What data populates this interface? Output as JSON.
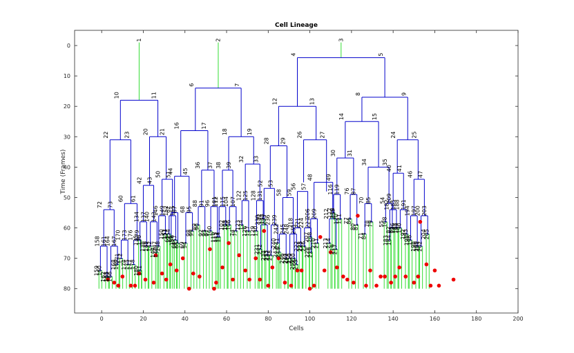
{
  "chart_data": {
    "type": "dendrogram",
    "title": "Cell Lineage",
    "xlabel": "Cells",
    "ylabel": "Time (Frames)",
    "xlim": [
      -13,
      200
    ],
    "ylim": [
      -5,
      88
    ],
    "y_reversed": true,
    "x_ticks": [
      0,
      20,
      40,
      60,
      80,
      100,
      120,
      140,
      160,
      180,
      200
    ],
    "y_ticks": [
      0,
      10,
      20,
      30,
      40,
      50,
      60,
      70,
      80
    ],
    "grid": false,
    "colors": {
      "lineage_branch": "#0000cc",
      "terminal_branch": "#33dd33",
      "root_stem": "#33dd33",
      "event_marker": "#ee0000",
      "axes": "#262626"
    },
    "roots": [
      {
        "label": "1",
        "x": 18,
        "y0": -1,
        "y1": 18
      },
      {
        "label": "2",
        "x": 56,
        "y0": -1,
        "y1": 14
      },
      {
        "label": "3",
        "x": 115,
        "y0": -1,
        "y1": 4
      }
    ],
    "divisions": [
      {
        "parent": "1",
        "y": 18,
        "children": [
          {
            "label": "10",
            "x": 9
          },
          {
            "label": "11",
            "x": 27
          }
        ]
      },
      {
        "parent": "2",
        "y": 14,
        "children": [
          {
            "label": "6",
            "x": 45
          },
          {
            "label": "7",
            "x": 67
          }
        ]
      },
      {
        "parent": "3",
        "y": 4,
        "children": [
          {
            "label": "4",
            "x": 94
          },
          {
            "label": "5",
            "x": 136
          }
        ]
      },
      {
        "parent": "10",
        "y": 31,
        "children": [
          {
            "label": "22",
            "x": 4
          },
          {
            "label": "23",
            "x": 14
          }
        ]
      },
      {
        "parent": "11",
        "y": 30,
        "children": [
          {
            "label": "20",
            "x": 23
          },
          {
            "label": "21",
            "x": 31
          }
        ]
      },
      {
        "parent": "6",
        "y": 28,
        "children": [
          {
            "label": "16",
            "x": 38
          },
          {
            "label": "17",
            "x": 51
          }
        ]
      },
      {
        "parent": "7",
        "y": 30,
        "children": [
          {
            "label": "18",
            "x": 61
          },
          {
            "label": "19",
            "x": 73
          }
        ]
      },
      {
        "parent": "4",
        "y": 20,
        "children": [
          {
            "label": "12",
            "x": 85
          },
          {
            "label": "13",
            "x": 103
          }
        ]
      },
      {
        "parent": "5",
        "y": 17,
        "children": [
          {
            "label": "8",
            "x": 125
          },
          {
            "label": "9",
            "x": 147
          }
        ]
      },
      {
        "parent": "8",
        "y": 25,
        "children": [
          {
            "label": "14",
            "x": 117
          },
          {
            "label": "15",
            "x": 133
          }
        ]
      },
      {
        "parent": "9",
        "y": 31,
        "children": [
          {
            "label": "24",
            "x": 142
          },
          {
            "label": "25",
            "x": 152
          }
        ]
      },
      {
        "parent": "12",
        "y": 33,
        "children": [
          {
            "label": "28",
            "x": 81
          },
          {
            "label": "29",
            "x": 89
          }
        ]
      },
      {
        "parent": "13",
        "y": 31,
        "children": [
          {
            "label": "26",
            "x": 97
          },
          {
            "label": "27",
            "x": 108
          }
        ]
      },
      {
        "parent": "14",
        "y": 37,
        "children": [
          {
            "label": "30",
            "x": 113
          },
          {
            "label": "31",
            "x": 121
          }
        ]
      },
      {
        "parent": "15",
        "y": 40,
        "children": [
          {
            "label": "34",
            "x": 128
          },
          {
            "label": "35",
            "x": 138
          }
        ]
      },
      {
        "parent": "16",
        "y": 43,
        "children": [
          {
            "label": "44",
            "x": 35
          },
          {
            "label": "45",
            "x": 42
          }
        ]
      },
      {
        "parent": "17",
        "y": 41,
        "children": [
          {
            "label": "36",
            "x": 48
          },
          {
            "label": "37",
            "x": 54
          }
        ]
      },
      {
        "parent": "18",
        "y": 41,
        "children": [
          {
            "label": "38",
            "x": 58
          },
          {
            "label": "39",
            "x": 63
          }
        ]
      },
      {
        "parent": "19",
        "y": 39,
        "children": [
          {
            "label": "32",
            "x": 69
          },
          {
            "label": "33",
            "x": 76
          }
        ]
      },
      {
        "parent": "20",
        "y": 46,
        "children": [
          {
            "label": "42",
            "x": 20
          },
          {
            "label": "43",
            "x": 25
          }
        ]
      },
      {
        "parent": "21",
        "y": 44,
        "children": [
          {
            "label": "50",
            "x": 29
          },
          {
            "label": "51",
            "x": 34
          }
        ]
      },
      {
        "parent": "22",
        "y": 54,
        "children": [
          {
            "label": "72",
            "x": 1
          },
          {
            "label": "73",
            "x": 6
          }
        ]
      },
      {
        "parent": "23",
        "y": 52,
        "children": [
          {
            "label": "60",
            "x": 11
          },
          {
            "label": "61",
            "x": 17
          }
        ]
      },
      {
        "parent": "24",
        "y": 42,
        "children": [
          {
            "label": "40",
            "x": 140
          },
          {
            "label": "41",
            "x": 145
          }
        ]
      },
      {
        "parent": "25",
        "y": 44,
        "children": [
          {
            "label": "46",
            "x": 150
          },
          {
            "label": "47",
            "x": 155
          }
        ]
      },
      {
        "parent": "26",
        "y": 45,
        "children": [
          {
            "label": "48",
            "x": 102
          },
          {
            "label": "49",
            "x": 111
          }
        ]
      },
      {
        "parent": "27",
        "y": 48,
        "children": [
          {
            "label": "56",
            "x": 94
          },
          {
            "label": "57",
            "x": 99
          }
        ]
      },
      {
        "parent": "28",
        "y": 47,
        "children": [
          {
            "label": "52",
            "x": 78
          },
          {
            "label": "53",
            "x": 83
          }
        ]
      },
      {
        "parent": "29",
        "y": 50,
        "children": [
          {
            "label": "58",
            "x": 87
          },
          {
            "label": "59",
            "x": 92
          }
        ]
      }
    ],
    "terminal_labels": [
      "116",
      "117",
      "118",
      "119",
      "120",
      "121",
      "76",
      "77",
      "86",
      "87",
      "80",
      "81",
      "70",
      "71",
      "84",
      "85",
      "78",
      "79",
      "54",
      "55",
      "108",
      "109",
      "82",
      "83",
      "62",
      "63",
      "66",
      "67",
      "64",
      "65",
      "68",
      "69",
      "94",
      "95",
      "98",
      "99",
      "88",
      "89",
      "90",
      "91",
      "92",
      "93",
      "96",
      "97",
      "100",
      "101",
      "110",
      "111",
      "112",
      "113",
      "114",
      "115",
      "102",
      "103",
      "104",
      "105",
      "106",
      "107",
      "74",
      "75",
      "122",
      "123",
      "124",
      "125",
      "126",
      "127",
      "128",
      "129",
      "130",
      "131",
      "132",
      "133",
      "134",
      "135",
      "136",
      "137",
      "138",
      "139",
      "140",
      "141",
      "142",
      "143",
      "144",
      "145",
      "146",
      "147",
      "148",
      "149",
      "150",
      "151",
      "152",
      "153",
      "154",
      "155",
      "156",
      "157",
      "158",
      "159",
      "160",
      "161",
      "162",
      "163",
      "164",
      "165",
      "166",
      "167",
      "168",
      "169",
      "170",
      "171",
      "172",
      "173",
      "174",
      "175",
      "176",
      "177",
      "178",
      "179",
      "180",
      "181",
      "182",
      "183",
      "184",
      "185",
      "186",
      "187",
      "188",
      "189",
      "190",
      "191",
      "192",
      "193",
      "194",
      "195",
      "196",
      "197",
      "198",
      "199",
      "200",
      "201",
      "202",
      "203",
      "204",
      "205",
      "206",
      "207",
      "208",
      "209",
      "210",
      "211",
      "212",
      "213",
      "214",
      "215",
      "216",
      "217",
      "218",
      "219",
      "220",
      "221",
      "222",
      "223",
      "224",
      "225",
      "226",
      "227",
      "228",
      "229",
      "230",
      "231",
      "232",
      "233",
      "234",
      "235",
      "236",
      "237",
      "238",
      "239",
      "240",
      "241",
      "242",
      "243",
      "244",
      "245",
      "246",
      "247",
      "248",
      "249",
      "250",
      "251",
      "252",
      "253",
      "254",
      "255",
      "256",
      "257",
      "258",
      "259",
      "260",
      "261",
      "262",
      "263",
      "264",
      "265",
      "266",
      "267",
      "268",
      "269",
      "270",
      "271",
      "272",
      "273",
      "274",
      "275",
      "276",
      "277"
    ],
    "terminal_end_frame": 80,
    "event_markers": [
      {
        "x": 3,
        "y": 77
      },
      {
        "x": 6,
        "y": 78
      },
      {
        "x": 8,
        "y": 79
      },
      {
        "x": 10,
        "y": 76
      },
      {
        "x": 14,
        "y": 79
      },
      {
        "x": 16,
        "y": 79
      },
      {
        "x": 18,
        "y": 75
      },
      {
        "x": 21,
        "y": 77
      },
      {
        "x": 25,
        "y": 78
      },
      {
        "x": 26,
        "y": 69
      },
      {
        "x": 29,
        "y": 75
      },
      {
        "x": 31,
        "y": 77
      },
      {
        "x": 33,
        "y": 72
      },
      {
        "x": 36,
        "y": 74
      },
      {
        "x": 39,
        "y": 70
      },
      {
        "x": 42,
        "y": 80
      },
      {
        "x": 44,
        "y": 75
      },
      {
        "x": 47,
        "y": 76
      },
      {
        "x": 52,
        "y": 67
      },
      {
        "x": 54,
        "y": 80
      },
      {
        "x": 55,
        "y": 78
      },
      {
        "x": 58,
        "y": 73
      },
      {
        "x": 61,
        "y": 65
      },
      {
        "x": 63,
        "y": 77
      },
      {
        "x": 66,
        "y": 69
      },
      {
        "x": 69,
        "y": 74
      },
      {
        "x": 71,
        "y": 77
      },
      {
        "x": 74,
        "y": 70
      },
      {
        "x": 76,
        "y": 77
      },
      {
        "x": 78,
        "y": 61
      },
      {
        "x": 80,
        "y": 79
      },
      {
        "x": 82,
        "y": 73
      },
      {
        "x": 85,
        "y": 70
      },
      {
        "x": 88,
        "y": 78
      },
      {
        "x": 91,
        "y": 79
      },
      {
        "x": 94,
        "y": 74
      },
      {
        "x": 96,
        "y": 74
      },
      {
        "x": 100,
        "y": 80
      },
      {
        "x": 102,
        "y": 79
      },
      {
        "x": 105,
        "y": 63
      },
      {
        "x": 107,
        "y": 74
      },
      {
        "x": 110,
        "y": 68
      },
      {
        "x": 113,
        "y": 73
      },
      {
        "x": 116,
        "y": 76
      },
      {
        "x": 118,
        "y": 77
      },
      {
        "x": 121,
        "y": 78
      },
      {
        "x": 123,
        "y": 56
      },
      {
        "x": 127,
        "y": 79
      },
      {
        "x": 129,
        "y": 74
      },
      {
        "x": 132,
        "y": 79
      },
      {
        "x": 134,
        "y": 76
      },
      {
        "x": 136,
        "y": 76
      },
      {
        "x": 139,
        "y": 78
      },
      {
        "x": 141,
        "y": 76
      },
      {
        "x": 143,
        "y": 73
      },
      {
        "x": 146,
        "y": 76
      },
      {
        "x": 150,
        "y": 78
      },
      {
        "x": 152,
        "y": 76
      },
      {
        "x": 153,
        "y": 58
      },
      {
        "x": 156,
        "y": 72
      },
      {
        "x": 158,
        "y": 79
      },
      {
        "x": 160,
        "y": 74
      },
      {
        "x": 162,
        "y": 79
      },
      {
        "x": 169,
        "y": 77
      }
    ]
  }
}
